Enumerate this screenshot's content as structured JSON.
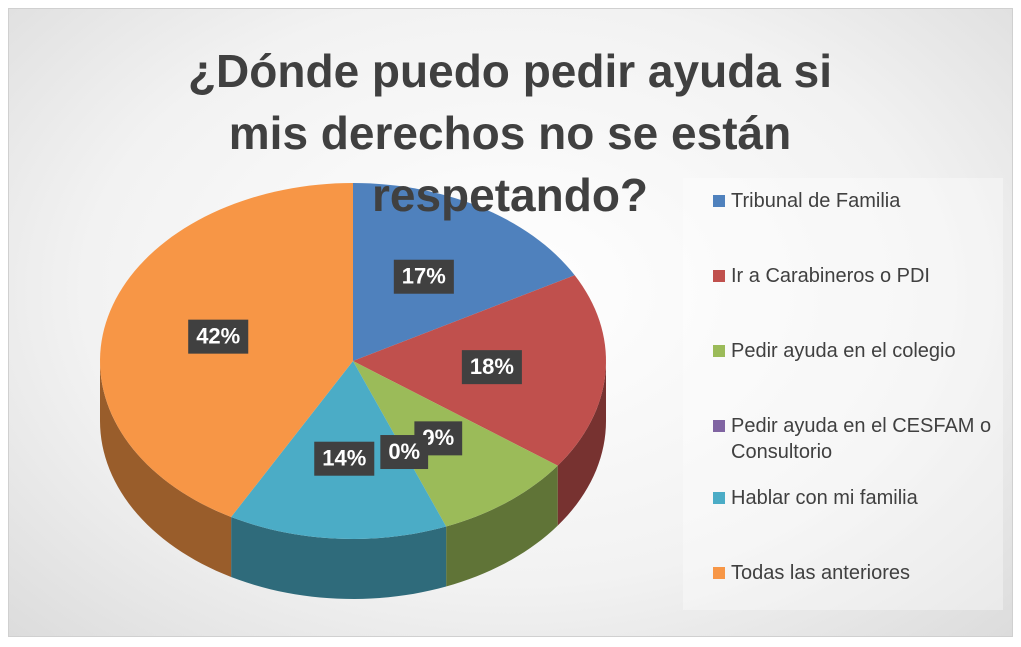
{
  "chart_data": {
    "type": "pie",
    "title": "¿Dónde puedo pedir ayuda si mis derechos no se están respetando?",
    "categories": [
      "Tribunal de Familia",
      "Ir a Carabineros o PDI",
      "Pedir ayuda en el colegio",
      "Pedir ayuda en el CESFAM o Consultorio",
      "Hablar con mi familia",
      "Todas las anteriores"
    ],
    "values": [
      17,
      18,
      9,
      0,
      14,
      42
    ],
    "value_labels": [
      "17%",
      "18%",
      "9%",
      "0%",
      "14%",
      "42%"
    ],
    "colors": [
      "#4f81bd",
      "#c0504d",
      "#9bbb59",
      "#8064a2",
      "#4bacc6",
      "#f79646"
    ],
    "legend": "right"
  }
}
